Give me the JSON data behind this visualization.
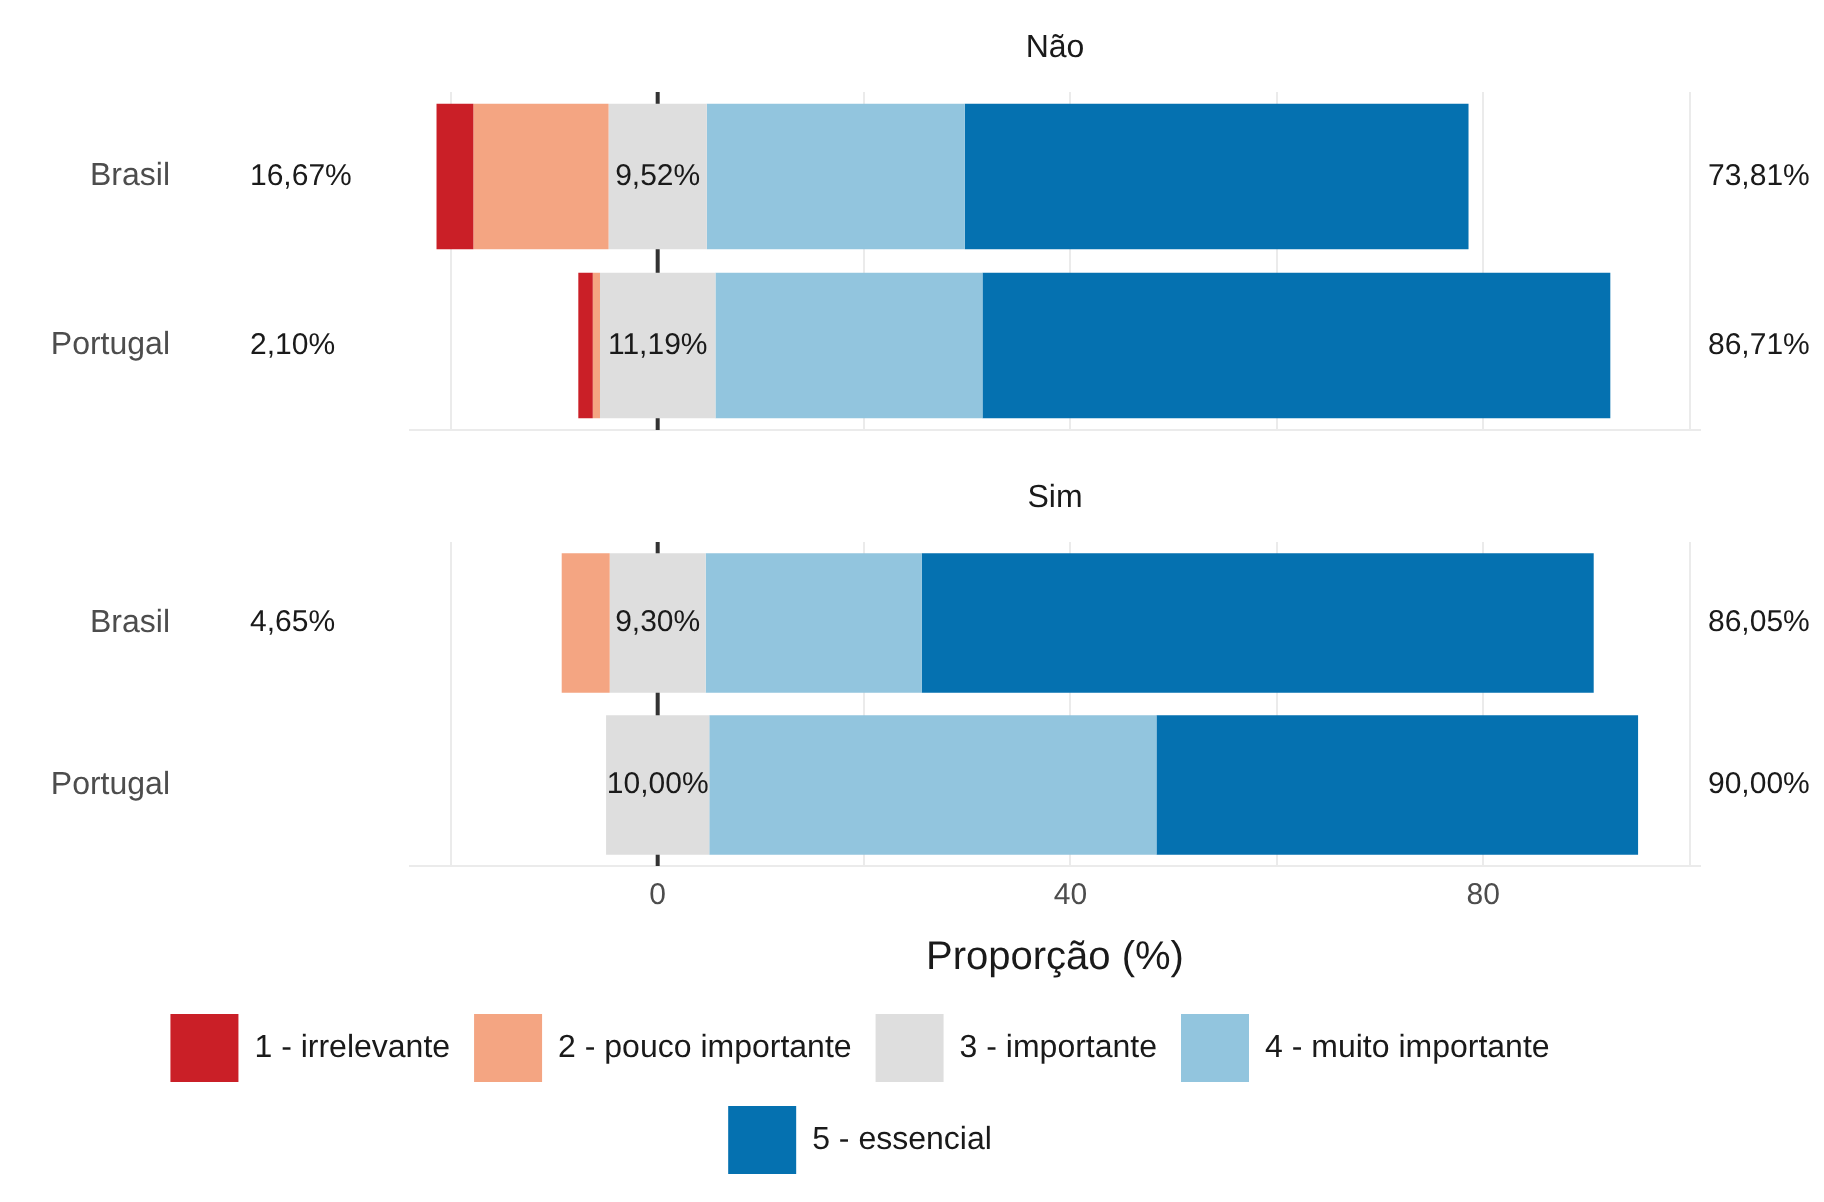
{
  "chart_data": [
    {
      "type": "bar",
      "title": "Não",
      "orientation": "horizontal",
      "categories": [
        "Brasil",
        "Portugal"
      ],
      "series": [
        {
          "color": "#ca1f27",
          "base": [
            -21.43,
            -7.69
          ],
          "values": [
            3.57,
            1.4
          ]
        },
        {
          "color": "#f4a582",
          "base": [
            -17.86,
            -6.29
          ],
          "values": [
            13.1,
            0.7
          ]
        },
        {
          "color": "#dedede",
          "base": [
            -4.76,
            -5.59
          ],
          "values": [
            9.52,
            11.19
          ],
          "value_labels": [
            "9,52%",
            "11,19%"
          ]
        },
        {
          "color": "#92c5de",
          "base": [
            4.76,
            5.6
          ],
          "values": [
            25.0,
            25.87
          ]
        },
        {
          "color": "#0571b0",
          "base": [
            29.76,
            31.47
          ],
          "values": [
            48.81,
            60.84
          ]
        }
      ],
      "xlim": [
        -24,
        101
      ],
      "xticks": [
        {
          "value": -20,
          "label": null
        },
        0,
        {
          "value": 20,
          "label": null
        },
        40,
        {
          "value": 60,
          "label": null
        },
        80,
        {
          "value": 100,
          "label": null
        }
      ],
      "tick_labels": "y",
      "grid": "x",
      "legend": false,
      "ref_lines": [
        {
          "axis": "x",
          "value": 0,
          "color": "#333333"
        }
      ],
      "annotations": [
        "16,67%",
        "73,81%",
        "2,10%",
        "86,71%"
      ]
    },
    {
      "type": "bar",
      "title": "Sim",
      "orientation": "horizontal",
      "xlabel": "Proporção (%)",
      "categories": [
        "Brasil",
        "Portugal"
      ],
      "series": [
        {
          "name": "1 - irrelevante",
          "color": "#ca1f27",
          "base": [
            null,
            null
          ],
          "values": [
            null,
            null
          ]
        },
        {
          "name": "2 - pouco importante",
          "color": "#f4a582",
          "base": [
            -9.3,
            null
          ],
          "values": [
            4.65,
            null
          ]
        },
        {
          "name": "3 - importante",
          "color": "#dedede",
          "base": [
            -4.65,
            -5.0
          ],
          "values": [
            9.3,
            10.0
          ],
          "value_labels": [
            "9,30%",
            "10,00%"
          ]
        },
        {
          "name": "4 - muito importante",
          "color": "#92c5de",
          "base": [
            4.65,
            5.0
          ],
          "values": [
            20.93,
            43.33
          ]
        },
        {
          "name": "5 - essencial",
          "color": "#0571b0",
          "base": [
            25.58,
            48.33
          ],
          "values": [
            65.12,
            46.67
          ]
        }
      ],
      "xlim": [
        -24,
        101
      ],
      "xticks": [
        {
          "value": -20,
          "label": null
        },
        0,
        {
          "value": 20,
          "label": null
        },
        40,
        {
          "value": 60,
          "label": null
        },
        80,
        {
          "value": 100,
          "label": null
        }
      ],
      "grid": "x",
      "legend": "bottom",
      "ref_lines": [
        {
          "axis": "x",
          "value": 0,
          "color": "#333333"
        }
      ],
      "annotations": [
        "4,65%",
        "86,05%",
        "90,00%"
      ]
    }
  ]
}
